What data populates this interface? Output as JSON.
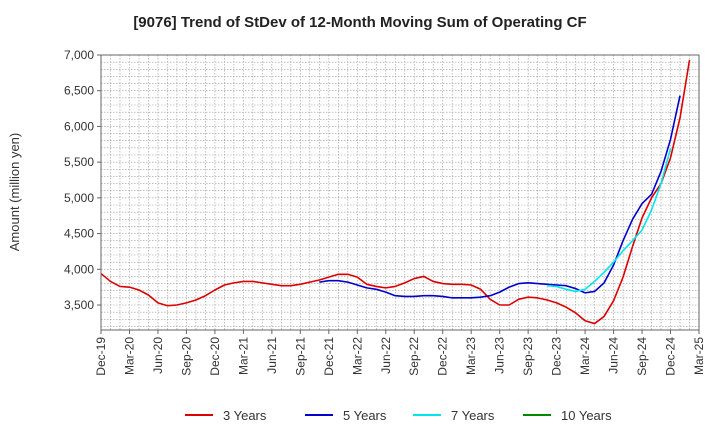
{
  "chart_data": {
    "type": "line",
    "title": "[9076]  Trend of StDev of 12-Month Moving Sum of Operating CF",
    "ylabel": "Amount (million yen)",
    "xlabel": "",
    "ylim": [
      3150,
      7000
    ],
    "yticks": [
      3500,
      4000,
      4500,
      5000,
      5500,
      6000,
      6500,
      7000
    ],
    "ytick_labels": [
      "3,500",
      "4,000",
      "4,500",
      "5,000",
      "5,500",
      "6,000",
      "6,500",
      "7,000"
    ],
    "xtick_labels": [
      "Dec-19",
      "Mar-20",
      "Jun-20",
      "Sep-20",
      "Dec-20",
      "Mar-21",
      "Jun-21",
      "Sep-21",
      "Dec-21",
      "Mar-22",
      "Jun-22",
      "Sep-22",
      "Dec-22",
      "Mar-23",
      "Jun-23",
      "Sep-23",
      "Dec-23",
      "Mar-24",
      "Jun-24",
      "Sep-24",
      "Dec-24",
      "Mar-25"
    ],
    "grid": true,
    "legend_position": "bottom",
    "series": [
      {
        "name": "3 Years",
        "color": "#dd0000",
        "start_month": "Dec-19",
        "values": [
          3940,
          3830,
          3760,
          3750,
          3710,
          3640,
          3530,
          3490,
          3500,
          3530,
          3570,
          3630,
          3710,
          3780,
          3810,
          3830,
          3830,
          3810,
          3790,
          3770,
          3770,
          3790,
          3820,
          3850,
          3890,
          3930,
          3930,
          3890,
          3790,
          3760,
          3740,
          3760,
          3810,
          3870,
          3900,
          3830,
          3800,
          3790,
          3790,
          3780,
          3720,
          3580,
          3500,
          3500,
          3580,
          3610,
          3600,
          3570,
          3530,
          3470,
          3390,
          3280,
          3240,
          3340,
          3560,
          3890,
          4320,
          4720,
          5000,
          5200,
          5560,
          6120,
          6930
        ]
      },
      {
        "name": "5 Years",
        "color": "#0000cc",
        "start_month": "Nov-21",
        "values": [
          3820,
          3840,
          3840,
          3820,
          3780,
          3740,
          3720,
          3680,
          3630,
          3620,
          3620,
          3630,
          3630,
          3620,
          3600,
          3600,
          3600,
          3610,
          3630,
          3680,
          3750,
          3800,
          3810,
          3800,
          3790,
          3780,
          3770,
          3730,
          3670,
          3690,
          3810,
          4060,
          4400,
          4700,
          4920,
          5050,
          5370,
          5820,
          6430
        ]
      },
      {
        "name": "7 Years",
        "color": "#00e5ee",
        "start_month": "Nov-23",
        "values": [
          3770,
          3760,
          3720,
          3690,
          3720,
          3830,
          3960,
          4100,
          4260,
          4400,
          4550,
          4830,
          5200,
          5690
        ]
      },
      {
        "name": "10 Years",
        "color": "#008800",
        "start_month": "Dec-24",
        "values": []
      }
    ]
  }
}
